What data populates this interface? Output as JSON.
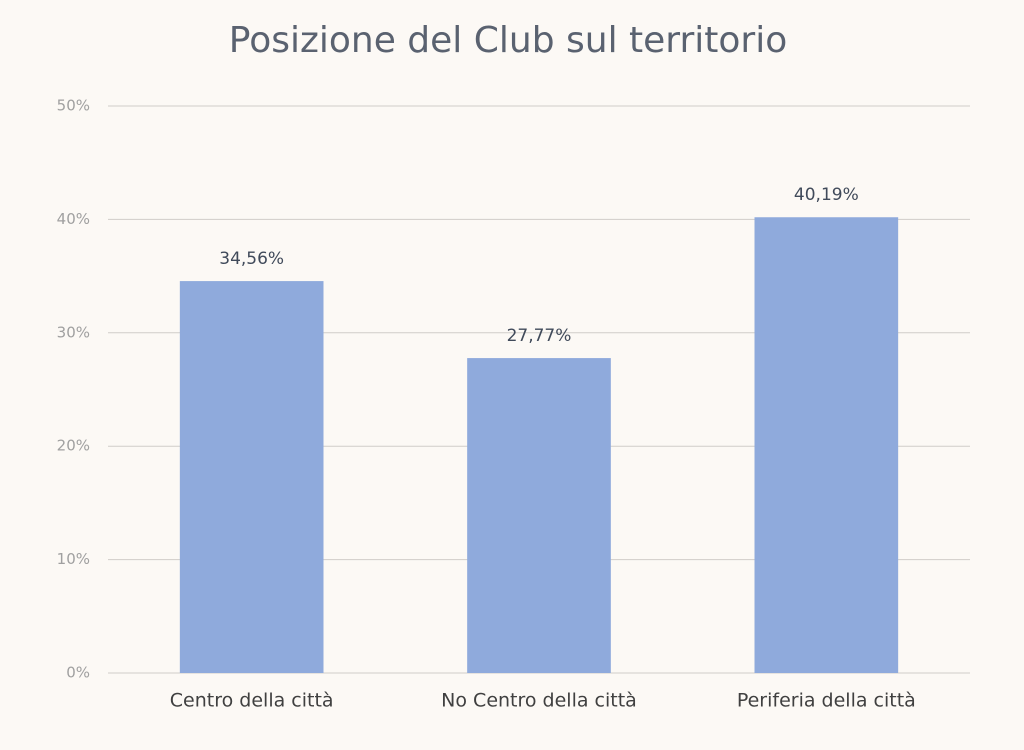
{
  "chart_data": {
    "type": "bar",
    "title": "Posizione del Club sul territorio",
    "categories": [
      "Centro della città",
      "No Centro della città",
      "Periferia della città"
    ],
    "values": [
      34.56,
      27.77,
      40.19
    ],
    "value_labels": [
      "34,56%",
      "27,77%",
      "40,19%"
    ],
    "color": "#8faadc",
    "ylim": [
      0,
      50
    ],
    "yticks": [
      {
        "value": 0,
        "label": "0%"
      },
      {
        "value": 10,
        "label": "10%"
      },
      {
        "value": 20,
        "label": "20%"
      },
      {
        "value": 30,
        "label": "30%"
      },
      {
        "value": 40,
        "label": "40%"
      },
      {
        "value": 50,
        "label": "50%"
      }
    ],
    "grid": true
  }
}
